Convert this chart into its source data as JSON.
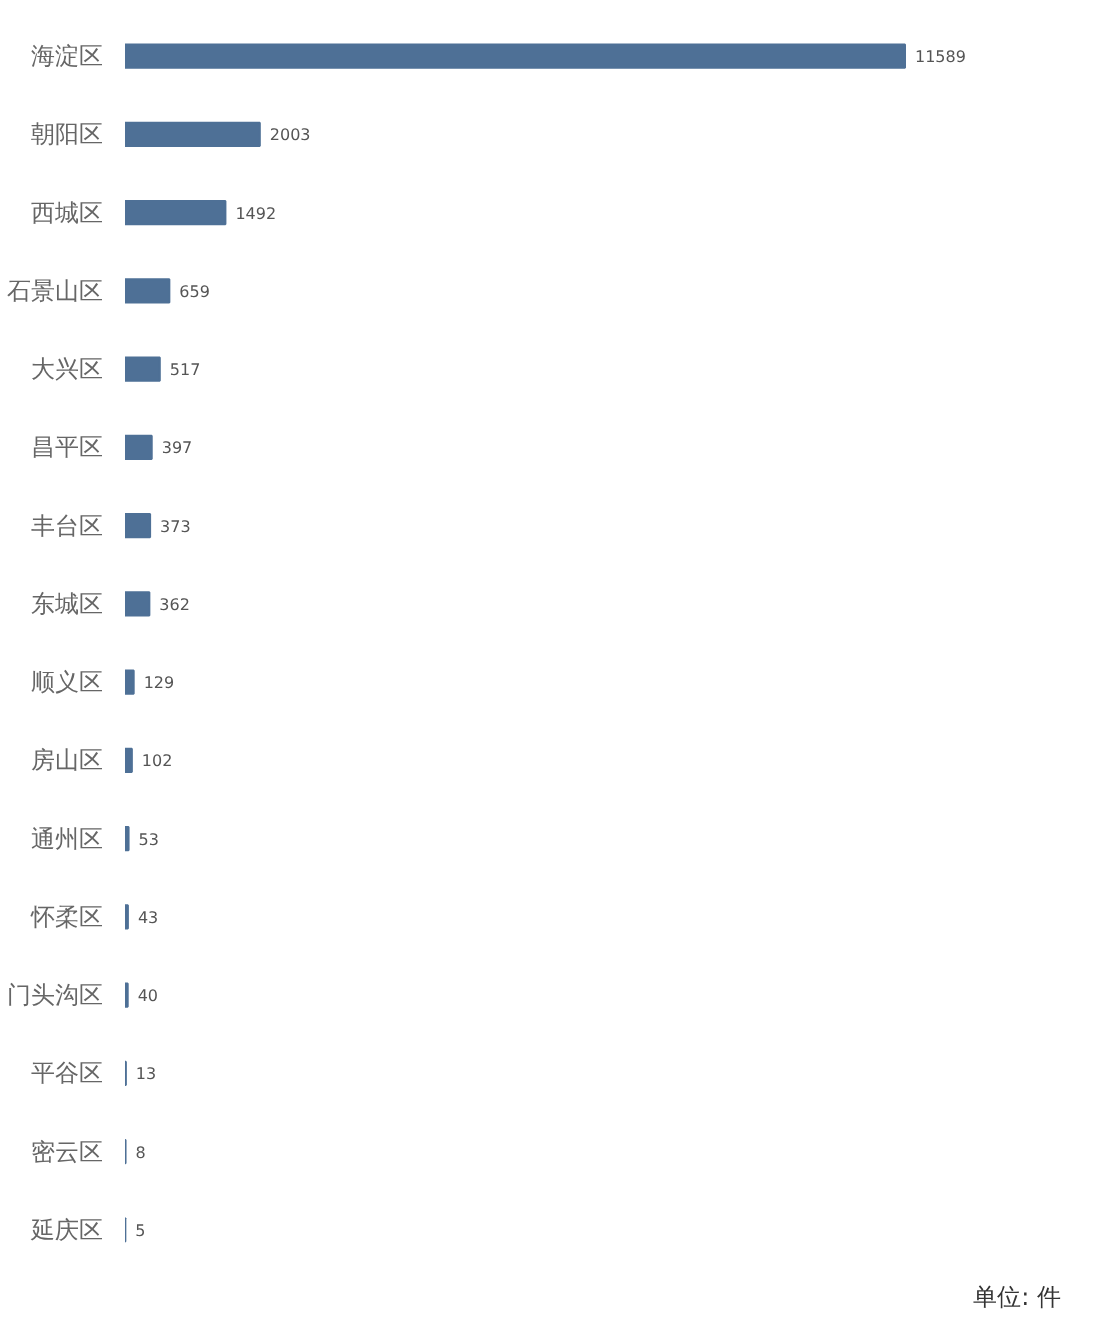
{
  "chart_data": {
    "type": "bar",
    "orientation": "horizontal",
    "categories": [
      "海淀区",
      "朝阳区",
      "西城区",
      "石景山区",
      "大兴区",
      "昌平区",
      "丰台区",
      "东城区",
      "顺义区",
      "房山区",
      "通州区",
      "怀柔区",
      "门头沟区",
      "平谷区",
      "密云区",
      "延庆区"
    ],
    "values": [
      11589,
      2003,
      1492,
      659,
      517,
      397,
      373,
      362,
      129,
      102,
      53,
      43,
      40,
      13,
      8,
      5
    ],
    "color": "#4e7096",
    "data_labels": true,
    "grid": false,
    "annotations": [
      "单位: 件"
    ]
  }
}
